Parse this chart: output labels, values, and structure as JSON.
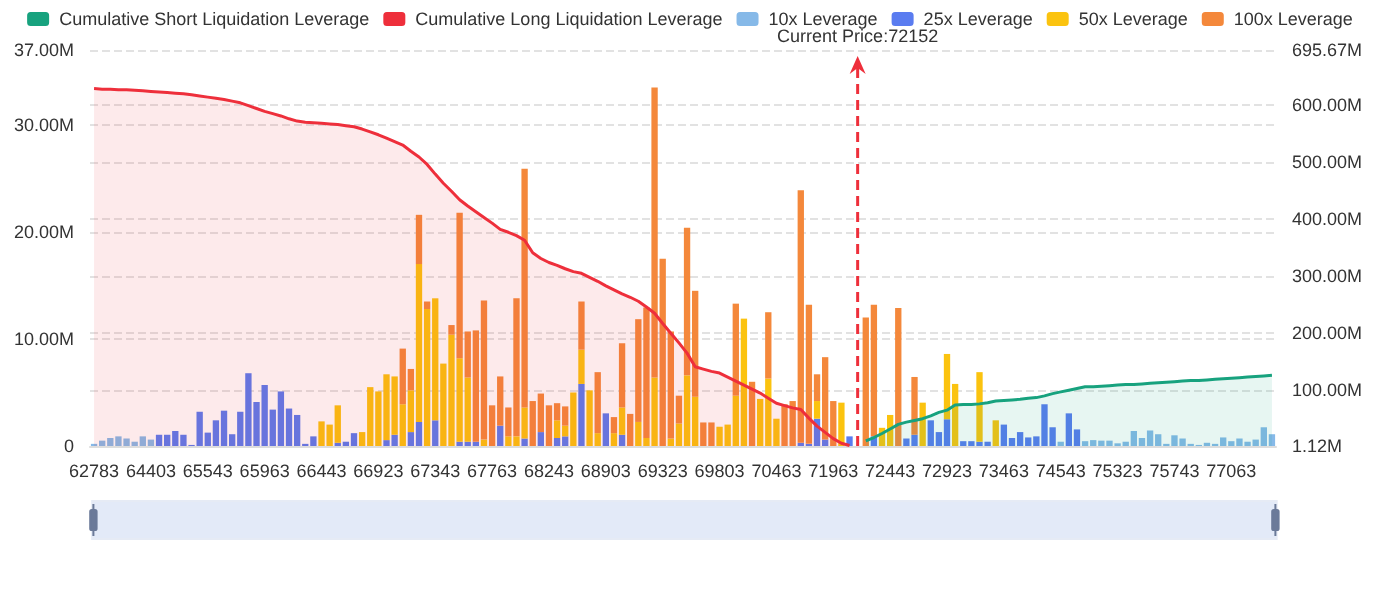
{
  "chart_data": {
    "type": "bar",
    "stacked": true,
    "grid": true,
    "legend": "top",
    "marker": "none",
    "categories": [
      "62783",
      null,
      null,
      null,
      null,
      null,
      null,
      "64403",
      null,
      null,
      null,
      null,
      null,
      null,
      "65543",
      null,
      null,
      null,
      null,
      null,
      null,
      "65963",
      null,
      null,
      null,
      null,
      null,
      null,
      "66443",
      null,
      null,
      null,
      null,
      null,
      null,
      "66923",
      null,
      null,
      null,
      null,
      null,
      null,
      "67343",
      null,
      null,
      null,
      null,
      null,
      null,
      "67763",
      null,
      null,
      null,
      null,
      null,
      null,
      "68243",
      null,
      null,
      null,
      null,
      null,
      null,
      "68903",
      null,
      null,
      null,
      null,
      null,
      null,
      "69323",
      null,
      null,
      null,
      null,
      null,
      null,
      "69803",
      null,
      null,
      null,
      null,
      null,
      null,
      "70463",
      null,
      null,
      null,
      null,
      null,
      null,
      "71963",
      null,
      null,
      null,
      null,
      null,
      null,
      "72443",
      null,
      null,
      null,
      null,
      null,
      null,
      "72923",
      null,
      null,
      null,
      null,
      null,
      null,
      "73463",
      null,
      null,
      null,
      null,
      null,
      null,
      "74543",
      null,
      null,
      null,
      null,
      null,
      null,
      "75323",
      null,
      null,
      null,
      null,
      null,
      null,
      "75743",
      null,
      null,
      null,
      null,
      null,
      null,
      "77063",
      null,
      null,
      null,
      null,
      null
    ],
    "ylim": [
      0,
      37
    ],
    "yticks": [
      0,
      {
        "value": 10,
        "label": "10.00M"
      },
      {
        "value": 20,
        "label": "20.00M"
      },
      {
        "value": 30,
        "label": "30.00M"
      },
      {
        "value": 37,
        "label": "37.00M"
      }
    ],
    "y2lim": [
      1.12,
      695.67
    ],
    "y2ticks": [
      {
        "value": 1.12,
        "label": "1.12M"
      },
      {
        "value": 100,
        "label": "100.00M"
      },
      {
        "value": 200,
        "label": "200.00M"
      },
      {
        "value": 300,
        "label": "300.00M"
      },
      {
        "value": 400,
        "label": "400.00M"
      },
      {
        "value": 500,
        "label": "500.00M"
      },
      {
        "value": 600,
        "label": "600.00M"
      },
      {
        "value": 695.67,
        "label": "695.67M"
      }
    ],
    "annotations": [
      "Current Price:72152"
    ],
    "series": [
      {
        "name": "Cumulative Short Liquidation Leverage",
        "type": "area",
        "axis": "y2",
        "color": "#17a27e",
        "values": [
          null,
          null,
          null,
          null,
          null,
          null,
          null,
          null,
          null,
          null,
          null,
          null,
          null,
          null,
          null,
          null,
          null,
          null,
          null,
          null,
          null,
          null,
          null,
          null,
          null,
          null,
          null,
          null,
          null,
          null,
          null,
          null,
          null,
          null,
          null,
          null,
          null,
          null,
          null,
          null,
          null,
          null,
          null,
          null,
          null,
          null,
          null,
          null,
          null,
          null,
          null,
          null,
          null,
          null,
          null,
          null,
          null,
          null,
          null,
          null,
          null,
          null,
          null,
          null,
          null,
          null,
          null,
          null,
          null,
          null,
          null,
          null,
          null,
          null,
          null,
          null,
          null,
          null,
          null,
          null,
          null,
          null,
          null,
          null,
          null,
          null,
          null,
          null,
          null,
          null,
          null,
          null,
          null,
          null,
          null,
          10,
          16,
          23,
          31,
          39,
          43,
          46,
          49,
          54,
          60,
          64,
          73,
          74,
          74,
          75,
          77,
          80,
          81,
          82,
          83,
          85,
          86,
          89,
          93,
          96,
          99,
          102,
          105,
          105,
          106,
          107,
          108,
          109,
          109,
          110,
          111,
          112,
          113,
          114,
          115,
          116,
          116,
          117,
          118,
          119,
          120,
          121,
          122,
          123,
          124,
          125
        ]
      },
      {
        "name": "Cumulative Long Liquidation Leverage",
        "type": "area",
        "axis": "y2",
        "color": "#ee2f3b",
        "values": [
          628,
          627,
          627,
          626,
          626,
          625,
          624,
          623,
          622,
          621,
          620,
          619,
          617,
          615,
          613,
          611,
          609,
          606,
          603,
          598,
          593,
          588,
          584,
          580,
          575,
          571,
          569,
          568,
          567,
          566,
          565,
          563,
          561,
          557,
          552,
          547,
          541,
          535,
          529,
          518,
          508,
          495,
          478,
          462,
          448,
          433,
          422,
          412,
          402,
          392,
          381,
          376,
          370,
          362,
          340,
          330,
          323,
          318,
          312,
          307,
          304,
          297,
          290,
          282,
          275,
          268,
          262,
          255,
          245,
          234,
          216,
          199,
          182,
          164,
          140,
          136,
          132,
          129,
          122,
          115,
          108,
          101,
          94,
          85,
          76,
          72,
          68,
          65,
          50,
          36,
          25,
          14,
          6,
          2,
          null,
          null,
          null,
          null,
          null,
          null,
          null,
          null,
          null,
          null,
          null,
          null,
          null,
          null,
          null,
          null,
          null,
          null,
          null,
          null,
          null,
          null,
          null,
          null,
          null,
          null,
          null,
          null,
          null,
          null,
          null,
          null,
          null,
          null,
          null,
          null,
          null,
          null,
          null,
          null,
          null,
          null,
          null,
          null,
          null,
          null,
          null,
          null,
          null,
          null,
          null,
          null
        ]
      },
      {
        "name": "10x Leverage",
        "color": "#86b9e8",
        "values": [
          0.2,
          0.5,
          0.75,
          0.9,
          0.7,
          0.4,
          0.9,
          0.6,
          null,
          null,
          null,
          null,
          null,
          null,
          null,
          null,
          null,
          null,
          null,
          null,
          null,
          null,
          null,
          null,
          null,
          null,
          null,
          null,
          null,
          null,
          null,
          null,
          null,
          null,
          null,
          null,
          null,
          null,
          null,
          null,
          null,
          null,
          null,
          null,
          null,
          null,
          null,
          null,
          null,
          null,
          null,
          null,
          null,
          null,
          null,
          null,
          null,
          null,
          null,
          null,
          null,
          null,
          null,
          null,
          null,
          null,
          null,
          null,
          null,
          null,
          null,
          null,
          null,
          null,
          null,
          null,
          null,
          null,
          null,
          null,
          null,
          null,
          null,
          null,
          null,
          null,
          null,
          null,
          null,
          null,
          null,
          null,
          null,
          null,
          null,
          null,
          null,
          null,
          null,
          null,
          null,
          null,
          null,
          null,
          null,
          null,
          null,
          null,
          null,
          null,
          null,
          null,
          null,
          null,
          null,
          null,
          null,
          null,
          null,
          0.4,
          null,
          null,
          0.45,
          0.55,
          0.5,
          0.5,
          0.25,
          0.4,
          1.4,
          0.75,
          1.45,
          1.1,
          0.2,
          1.0,
          0.7,
          0.2,
          0.1,
          0.3,
          0.2,
          0.8,
          0.45,
          0.7,
          0.4,
          0.6,
          1.75,
          1.1
        ]
      },
      {
        "name": "25x Leverage",
        "color": "#5a7cf0",
        "values": [
          null,
          null,
          null,
          null,
          null,
          null,
          null,
          null,
          1.05,
          1.05,
          1.4,
          1.05,
          0.1,
          3.2,
          1.25,
          2.4,
          3.3,
          1.1,
          3.2,
          6.8,
          4.1,
          5.7,
          3.4,
          5.1,
          3.5,
          2.9,
          0.2,
          0.9,
          null,
          null,
          0.3,
          0.4,
          1.2,
          null,
          null,
          null,
          0.55,
          1.05,
          null,
          1.3,
          2.25,
          null,
          2.4,
          null,
          null,
          0.4,
          0.4,
          0.4,
          null,
          null,
          1.9,
          null,
          null,
          0.7,
          null,
          1.3,
          null,
          0.75,
          0.9,
          null,
          5.8,
          null,
          null,
          3.05,
          null,
          1.05,
          null,
          null,
          null,
          null,
          null,
          null,
          null,
          null,
          null,
          null,
          null,
          null,
          null,
          null,
          null,
          null,
          null,
          null,
          null,
          null,
          null,
          0.3,
          0.2,
          2.55,
          0.6,
          null,
          null,
          0.9,
          null,
          null,
          0.9,
          null,
          null,
          null,
          0.7,
          1.05,
          null,
          2.4,
          1.3,
          2.5,
          null,
          0.45,
          0.45,
          0.4,
          0.4,
          null,
          2.0,
          0.75,
          1.3,
          0.8,
          0.9,
          3.9,
          1.75,
          null,
          3.05,
          1.55,
          null,
          null,
          null,
          null,
          null,
          null,
          null,
          null,
          null,
          null,
          null,
          null,
          null,
          null,
          null,
          null,
          null,
          null,
          null,
          null,
          null,
          null,
          null,
          null
        ]
      },
      {
        "name": "50x Leverage",
        "color": "#fbc30f",
        "values": [
          null,
          null,
          null,
          null,
          null,
          null,
          null,
          null,
          null,
          null,
          null,
          null,
          null,
          null,
          null,
          null,
          null,
          null,
          null,
          null,
          null,
          null,
          null,
          null,
          null,
          null,
          null,
          null,
          2.3,
          2.0,
          3.5,
          null,
          null,
          1.3,
          5.5,
          5.1,
          6.15,
          5.45,
          3.9,
          3.9,
          14.75,
          12.8,
          11.4,
          7.7,
          10.4,
          7.8,
          6.0,
          null,
          0.6,
          null,
          null,
          0.9,
          0.9,
          2.9,
          null,
          null,
          null,
          1.65,
          1.0,
          5.0,
          3.2,
          5.2,
          1.2,
          null,
          1.2,
          2.55,
          null,
          2.25,
          0.75,
          6.4,
          null,
          0.7,
          2.1,
          6.6,
          4.6,
          null,
          null,
          1.8,
          2.0,
          4.7,
          11.9,
          null,
          4.4,
          6.3,
          2.55,
          null,
          null,
          null,
          null,
          1.65,
          null,
          null,
          4.05,
          null,
          null,
          null,
          null,
          1.7,
          2.9,
          null,
          null,
          null,
          4.05,
          null,
          null,
          6.1,
          5.8,
          null,
          null,
          6.5,
          null,
          2.4,
          null,
          null,
          null,
          null,
          null,
          null,
          null,
          null,
          null,
          null,
          null,
          null,
          null,
          null,
          null,
          null,
          null,
          null,
          null,
          null,
          null,
          null,
          null,
          null,
          null,
          null,
          null,
          null,
          null,
          null,
          null,
          null,
          null,
          null
        ]
      },
      {
        "name": "100x Leverage",
        "color": "#f4883b",
        "values": [
          null,
          null,
          null,
          null,
          null,
          null,
          null,
          null,
          null,
          null,
          null,
          null,
          null,
          null,
          null,
          null,
          null,
          null,
          null,
          null,
          null,
          null,
          null,
          null,
          null,
          null,
          null,
          null,
          null,
          null,
          null,
          null,
          null,
          null,
          null,
          null,
          null,
          null,
          5.2,
          2.0,
          4.6,
          0.7,
          null,
          null,
          0.9,
          13.6,
          4.3,
          10.4,
          13.0,
          3.8,
          4.6,
          2.7,
          12.9,
          22.3,
          4.2,
          3.6,
          3.8,
          1.6,
          1.8,
          null,
          4.5,
          null,
          5.7,
          null,
          1.5,
          6.0,
          3.0,
          9.6,
          12.2,
          27.1,
          17.5,
          10.0,
          2.6,
          13.8,
          9.9,
          2.2,
          2.2,
          null,
          null,
          8.6,
          null,
          6.0,
          null,
          6.2,
          null,
          3.9,
          4.2,
          23.6,
          13.0,
          2.5,
          7.7,
          4.2,
          null,
          null,
          null,
          12.0,
          12.3,
          null,
          null,
          12.9,
          null,
          5.4,
          null,
          null,
          null,
          null,
          null,
          null,
          null,
          null,
          null,
          null,
          null,
          null,
          null,
          null,
          null,
          null,
          null,
          null,
          null,
          null,
          null,
          null,
          null,
          null,
          null,
          null,
          null,
          null,
          null,
          null,
          null,
          null,
          null,
          null,
          null,
          null,
          null,
          null,
          null,
          null,
          null,
          null,
          null,
          null
        ]
      }
    ]
  }
}
